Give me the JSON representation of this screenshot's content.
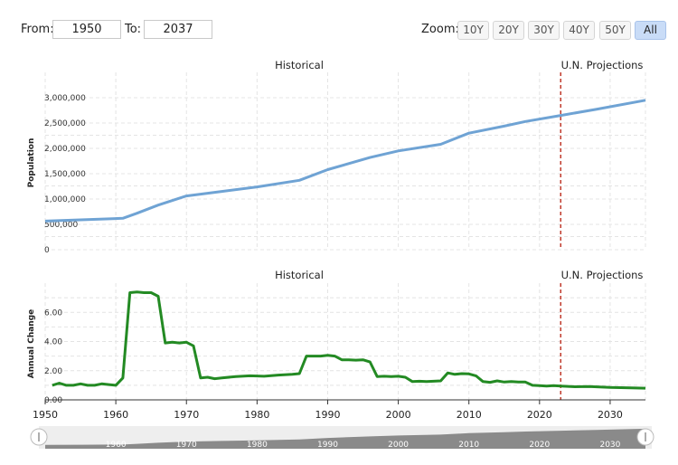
{
  "range": {
    "from_label": "From:",
    "from_value": "1950",
    "to_label": "To:",
    "to_value": "2037"
  },
  "zoom": {
    "label": "Zoom:",
    "buttons": [
      "10Y",
      "20Y",
      "30Y",
      "40Y",
      "50Y",
      "All"
    ],
    "active": "All"
  },
  "colors": {
    "population_line": "#6fa3d4",
    "change_line": "#238a23",
    "projection_line": "#c0392b",
    "navigator_fill": "#8a8a8a"
  },
  "chart_data": [
    {
      "type": "line",
      "section_labels": [
        "Historical",
        "U.N. Projections"
      ],
      "projection_start": 2023,
      "ylabel": "Population",
      "xlim": [
        1950,
        2035
      ],
      "ylim": [
        0,
        3500000
      ],
      "yticks": [
        "0",
        "500,000",
        "1,000,000",
        "1,500,000",
        "2,000,000",
        "2,500,000",
        "3,000,000"
      ],
      "ytick_values": [
        0,
        500000,
        1000000,
        1500000,
        2000000,
        2500000,
        3000000
      ],
      "series": [
        {
          "x": [
            1950,
            1955,
            1961,
            1963,
            1966,
            1970,
            1975,
            1980,
            1986,
            1990,
            1996,
            2000,
            2006,
            2010,
            2015,
            2018,
            2023,
            2028,
            2035
          ],
          "values": [
            565000,
            590000,
            620000,
            720000,
            880000,
            1060000,
            1150000,
            1240000,
            1370000,
            1580000,
            1820000,
            1950000,
            2080000,
            2300000,
            2440000,
            2530000,
            2650000,
            2770000,
            2950000
          ]
        }
      ]
    },
    {
      "type": "line",
      "section_labels": [
        "Historical",
        "U.N. Projections"
      ],
      "projection_start": 2023,
      "ylabel": "Annual Change",
      "xlim": [
        1950,
        2035
      ],
      "ylim": [
        0,
        8
      ],
      "yticks": [
        "0.00",
        "2.00",
        "4.00",
        "6.00"
      ],
      "ytick_values": [
        0,
        2,
        4,
        6
      ],
      "xticks": [
        "1950",
        "1960",
        "1970",
        "1980",
        "1990",
        "2000",
        "2010",
        "2020",
        "2030"
      ],
      "xtick_values": [
        1950,
        1960,
        1970,
        1980,
        1990,
        2000,
        2010,
        2020,
        2030
      ],
      "series": [
        {
          "x": [
            1951,
            1952,
            1953,
            1954,
            1955,
            1956,
            1957,
            1958,
            1959,
            1960,
            1961,
            1962,
            1963,
            1964,
            1965,
            1966,
            1967,
            1968,
            1969,
            1970,
            1971,
            1972,
            1973,
            1974,
            1975,
            1977,
            1979,
            1981,
            1983,
            1985,
            1986,
            1987,
            1988,
            1989,
            1990,
            1991,
            1992,
            1993,
            1994,
            1995,
            1996,
            1997,
            1998,
            1999,
            2000,
            2001,
            2002,
            2003,
            2004,
            2005,
            2006,
            2007,
            2008,
            2009,
            2010,
            2011,
            2012,
            2013,
            2014,
            2015,
            2016,
            2017,
            2018,
            2019,
            2020,
            2021,
            2022,
            2023,
            2025,
            2027,
            2030,
            2033,
            2035
          ],
          "values": [
            1.0,
            1.15,
            1.0,
            1.0,
            1.1,
            1.0,
            1.0,
            1.1,
            1.05,
            1.0,
            1.5,
            7.35,
            7.4,
            7.35,
            7.35,
            7.1,
            3.9,
            3.95,
            3.9,
            3.95,
            3.7,
            1.5,
            1.55,
            1.45,
            1.5,
            1.6,
            1.65,
            1.62,
            1.7,
            1.75,
            1.8,
            3.0,
            3.0,
            3.0,
            3.05,
            3.0,
            2.75,
            2.75,
            2.72,
            2.75,
            2.6,
            1.6,
            1.62,
            1.6,
            1.62,
            1.55,
            1.25,
            1.28,
            1.25,
            1.28,
            1.3,
            1.85,
            1.75,
            1.8,
            1.78,
            1.65,
            1.25,
            1.2,
            1.3,
            1.22,
            1.25,
            1.22,
            1.22,
            1.0,
            0.98,
            0.95,
            0.98,
            0.95,
            0.9,
            0.92,
            0.85,
            0.82,
            0.8
          ]
        }
      ]
    }
  ],
  "navigator": {
    "xticks": [
      "1960",
      "1970",
      "1980",
      "1990",
      "2000",
      "2010",
      "2020",
      "2030"
    ],
    "xtick_values": [
      1960,
      1970,
      1980,
      1990,
      2000,
      2010,
      2020,
      2030
    ]
  }
}
